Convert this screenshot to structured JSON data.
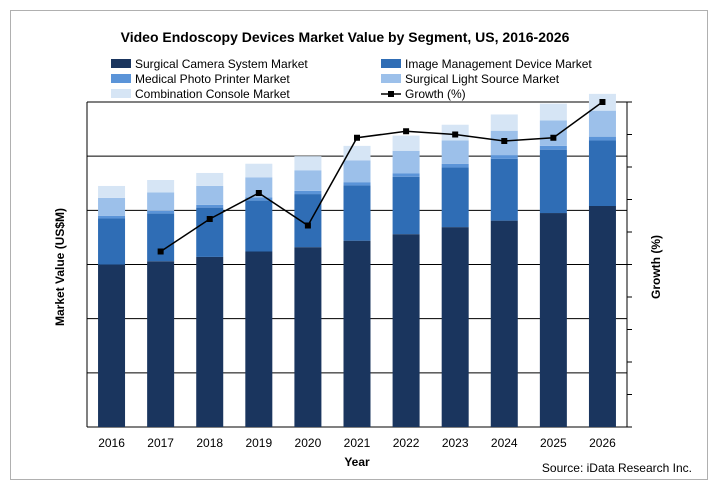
{
  "chart_data": {
    "type": "bar",
    "stacked": true,
    "title": "Video Endoscopy Devices Market Value by Segment, US, 2016-2026",
    "xlabel": "Year",
    "ylabel": "Market Value (US$M)",
    "y2label": "Growth (%)",
    "categories": [
      "2016",
      "2017",
      "2018",
      "2019",
      "2020",
      "2021",
      "2022",
      "2023",
      "2024",
      "2025",
      "2026"
    ],
    "ylim": [
      0,
      6
    ],
    "y2lim": [
      0,
      10
    ],
    "grid": true,
    "legend_position": "top",
    "series": [
      {
        "name": "Surgical Camera System Market",
        "color": "#1a355e",
        "values": [
          3.0,
          3.06,
          3.14,
          3.24,
          3.32,
          3.44,
          3.56,
          3.69,
          3.81,
          3.95,
          4.08
        ]
      },
      {
        "name": "Image Management Device Market",
        "color": "#2f6db5",
        "values": [
          0.85,
          0.88,
          0.91,
          0.94,
          0.98,
          1.02,
          1.06,
          1.1,
          1.14,
          1.17,
          1.21
        ]
      },
      {
        "name": "Medical Photo Printer Market",
        "color": "#5b94d8",
        "values": [
          0.05,
          0.05,
          0.05,
          0.06,
          0.06,
          0.06,
          0.06,
          0.07,
          0.07,
          0.07,
          0.07
        ]
      },
      {
        "name": "Surgical Light Source Market",
        "color": "#9cc0ea",
        "values": [
          0.33,
          0.34,
          0.35,
          0.37,
          0.38,
          0.4,
          0.42,
          0.43,
          0.45,
          0.47,
          0.48
        ]
      },
      {
        "name": "Combination Console Market",
        "color": "#d6e5f5",
        "values": [
          0.22,
          0.23,
          0.24,
          0.25,
          0.26,
          0.27,
          0.28,
          0.29,
          0.3,
          0.31,
          0.31
        ]
      }
    ],
    "line_series": {
      "name": "Growth (%)",
      "color": "#000000",
      "axis": "right",
      "x": [
        "2017",
        "2018",
        "2019",
        "2020",
        "2021",
        "2022",
        "2023",
        "2024",
        "2025",
        "2026"
      ],
      "values": [
        5.4,
        6.4,
        7.2,
        6.2,
        8.9,
        9.1,
        9.0,
        8.8,
        8.9,
        10.0
      ]
    },
    "source": "Source: iData Research Inc."
  }
}
